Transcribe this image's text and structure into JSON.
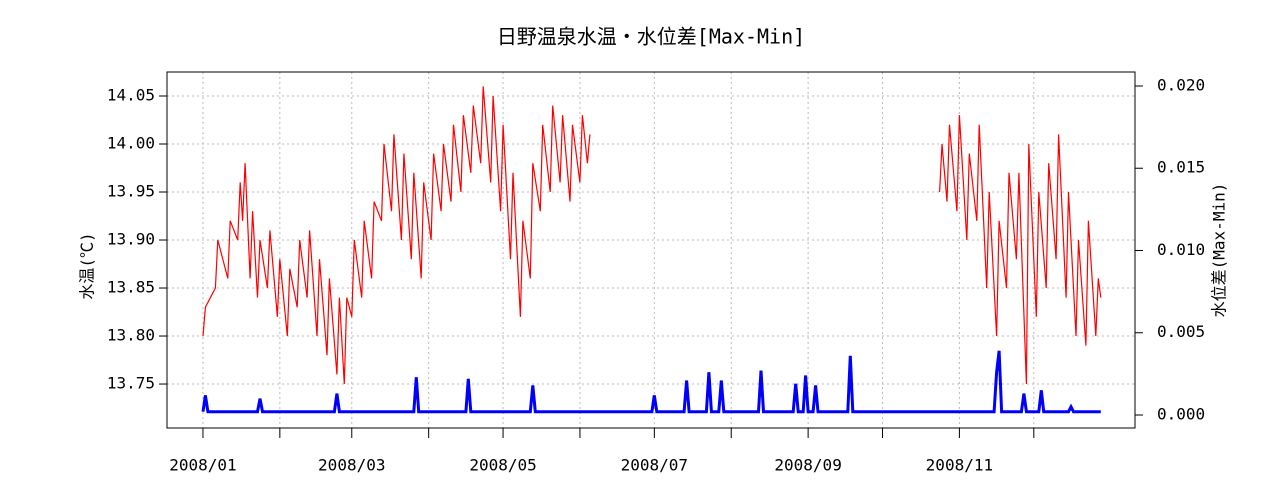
{
  "chart_data": {
    "type": "line",
    "title": "日野温泉水温・水位差[Max-Min]",
    "ylabel": "水温(℃)",
    "y2label": "水位差(Max-Min)",
    "xlim": [
      -14.5,
      375.8
    ],
    "xticks": [
      {
        "value": 0,
        "label": "2008/01"
      },
      {
        "value": 60,
        "label": "2008/03"
      },
      {
        "value": 121,
        "label": "2008/05"
      },
      {
        "value": 182,
        "label": "2008/07"
      },
      {
        "value": 244,
        "label": "2008/09"
      },
      {
        "value": 305,
        "label": "2008/11"
      }
    ],
    "xminorticks": [
      31,
      91,
      152,
      213,
      274,
      335
    ],
    "ylim": [
      13.7042,
      14.075
    ],
    "yticks": [
      13.75,
      {
        "value": 13.8,
        "label": "13.80"
      },
      13.85,
      {
        "value": 13.9,
        "label": "13.90"
      },
      13.95,
      {
        "value": 14.0,
        "label": "14.00"
      },
      14.05
    ],
    "y2lim": [
      -0.00079,
      0.02085
    ],
    "y2ticks": [
      {
        "value": 0,
        "label": "0.000"
      },
      0.005,
      {
        "value": 0.01,
        "label": "0.010"
      },
      0.015,
      {
        "value": 0.02,
        "label": "0.020"
      }
    ],
    "grid": true,
    "series": [
      {
        "name": "水温",
        "color": "#ff0000",
        "x": [
          0,
          1,
          5,
          6,
          10,
          11,
          14,
          15,
          16,
          17,
          19,
          20,
          22,
          23,
          26,
          27,
          30,
          31,
          34,
          35,
          38,
          39,
          42,
          43,
          46,
          47,
          50,
          51,
          54,
          55,
          57,
          58,
          60,
          61,
          64,
          65,
          68,
          69,
          72,
          73,
          76,
          77,
          80,
          81,
          84,
          85,
          88,
          89,
          92,
          93,
          96,
          97,
          100,
          101,
          104,
          105,
          108,
          109,
          112,
          113,
          116,
          117,
          120,
          121,
          124,
          125,
          128,
          129,
          132,
          133,
          136,
          137,
          140,
          141,
          144,
          145,
          148,
          149,
          152,
          153,
          155,
          156,
          226,
          297,
          298,
          300,
          301,
          304,
          305,
          308,
          309,
          312,
          313,
          316,
          317,
          320,
          321,
          324,
          325,
          328,
          329,
          332,
          333,
          336,
          337,
          340,
          341,
          344,
          345,
          348,
          349,
          352,
          353,
          356,
          357,
          360,
          361,
          362
        ],
        "values": [
          13.8,
          13.83,
          13.85,
          13.9,
          13.86,
          13.92,
          13.9,
          13.96,
          13.92,
          13.98,
          13.86,
          13.93,
          13.84,
          13.9,
          13.85,
          13.91,
          13.82,
          13.88,
          13.8,
          13.87,
          13.83,
          13.9,
          13.84,
          13.91,
          13.8,
          13.88,
          13.78,
          13.86,
          13.76,
          13.84,
          13.75,
          13.84,
          13.82,
          13.9,
          13.84,
          13.92,
          13.86,
          13.94,
          13.92,
          14.0,
          13.93,
          14.01,
          13.9,
          13.99,
          13.88,
          13.97,
          13.86,
          13.96,
          13.9,
          13.99,
          13.93,
          14.0,
          13.94,
          14.02,
          13.95,
          14.03,
          13.97,
          14.04,
          13.98,
          14.06,
          13.96,
          14.05,
          13.93,
          14.02,
          13.88,
          13.97,
          13.82,
          13.92,
          13.86,
          13.98,
          13.93,
          14.02,
          13.95,
          14.04,
          13.96,
          14.03,
          13.94,
          14.02,
          13.96,
          14.03,
          13.98,
          14.01,
          null,
          13.95,
          14.0,
          13.94,
          14.02,
          13.93,
          14.03,
          13.9,
          13.99,
          13.92,
          14.02,
          13.85,
          13.95,
          13.8,
          13.92,
          13.85,
          13.97,
          13.88,
          13.97,
          13.75,
          14.0,
          13.82,
          13.95,
          13.85,
          13.98,
          13.88,
          14.01,
          13.84,
          13.95,
          13.8,
          13.9,
          13.79,
          13.92,
          13.8,
          13.86,
          13.84
        ]
      },
      {
        "name": "水位差",
        "color": "#0000ff",
        "axis": "y2",
        "x": [
          0,
          1,
          2,
          22,
          23,
          24,
          53,
          54,
          55,
          85,
          86,
          87,
          106,
          107,
          108,
          132,
          133,
          134,
          181,
          182,
          183,
          194,
          195,
          196,
          203,
          204,
          205,
          208,
          209,
          210,
          224,
          225,
          226,
          238,
          239,
          240,
          242,
          243,
          244,
          246,
          247,
          248,
          260,
          261,
          262,
          319,
          320,
          321,
          322,
          330,
          331,
          332,
          337,
          338,
          339,
          349,
          350,
          351,
          362
        ],
        "values": [
          0.0002,
          0.0012,
          0.0002,
          0.0002,
          0.001,
          0.0002,
          0.0002,
          0.0013,
          0.0002,
          0.0002,
          0.0023,
          0.0002,
          0.0002,
          0.0022,
          0.0002,
          0.0002,
          0.0018,
          0.0002,
          0.0002,
          0.0012,
          0.0002,
          0.0002,
          0.0021,
          0.0002,
          0.0002,
          0.0026,
          0.0002,
          0.0002,
          0.0021,
          0.0002,
          0.0002,
          0.0027,
          0.0002,
          0.0002,
          0.0019,
          0.0002,
          0.0002,
          0.0024,
          0.0002,
          0.0002,
          0.0018,
          0.0002,
          0.0002,
          0.0036,
          0.0002,
          0.0002,
          0.0026,
          0.0039,
          0.0002,
          0.0002,
          0.0013,
          0.0002,
          0.0002,
          0.0015,
          0.0002,
          0.0002,
          0.0005,
          0.0002,
          0.0002
        ]
      }
    ]
  }
}
